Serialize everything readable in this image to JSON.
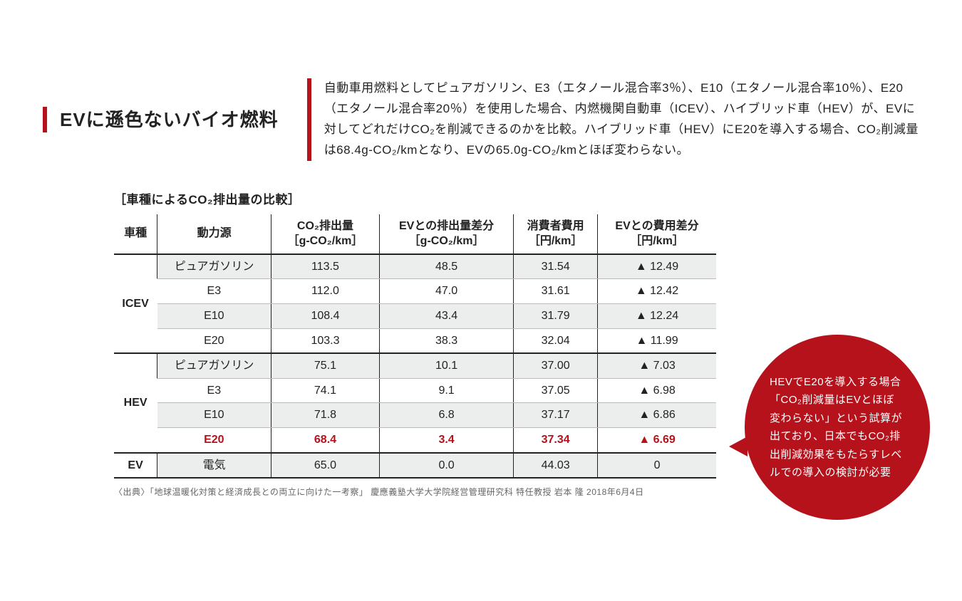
{
  "colors": {
    "accent": "#b5121b",
    "shade": "#eceded",
    "border": "#222222"
  },
  "header": {
    "title": "EVに遜色ないバイオ燃料",
    "description": "自動車用燃料としてピュアガソリン、E3（エタノール混合率3％）、E10（エタノール混合率10％）、E20（エタノール混合率20％）を使用した場合、内燃機関自動車（ICEV）、ハイブリッド車（HEV）が、EVに対してどれだけCO₂を削減できるのかを比較。ハイブリッド車（HEV）にE20を導入する場合、CO₂削減量は68.4g-CO₂/kmとなり、EVの65.0g-CO₂/kmとほぼ変わらない。"
  },
  "table": {
    "caption": "［車種によるCO₂排出量の比較］",
    "columns": {
      "c0": "車種",
      "c1": "動力源",
      "c2": "CO₂排出量\n［g-CO₂/km］",
      "c3": "EVとの排出量差分\n［g-CO₂/km］",
      "c4": "消費者費用\n［円/km］",
      "c5": "EVとの費用差分\n［円/km］"
    },
    "groups": [
      {
        "name": "ICEV",
        "rows": [
          {
            "shaded": true,
            "cells": [
              "ピュアガソリン",
              "113.5",
              "48.5",
              "31.54",
              "▲ 12.49"
            ]
          },
          {
            "shaded": false,
            "cells": [
              "E3",
              "112.0",
              "47.0",
              "31.61",
              "▲ 12.42"
            ]
          },
          {
            "shaded": true,
            "cells": [
              "E10",
              "108.4",
              "43.4",
              "31.79",
              "▲ 12.24"
            ]
          },
          {
            "shaded": false,
            "cells": [
              "E20",
              "103.3",
              "38.3",
              "32.04",
              "▲ 11.99"
            ]
          }
        ]
      },
      {
        "name": "HEV",
        "rows": [
          {
            "shaded": true,
            "cells": [
              "ピュアガソリン",
              "75.1",
              "10.1",
              "37.00",
              "▲   7.03"
            ]
          },
          {
            "shaded": false,
            "cells": [
              "E3",
              "74.1",
              "9.1",
              "37.05",
              "▲   6.98"
            ]
          },
          {
            "shaded": true,
            "cells": [
              "E10",
              "71.8",
              "6.8",
              "37.17",
              "▲   6.86"
            ]
          },
          {
            "shaded": false,
            "highlight": true,
            "cells": [
              "E20",
              "68.4",
              "3.4",
              "37.34",
              "▲   6.69"
            ]
          }
        ]
      },
      {
        "name": "EV",
        "rows": [
          {
            "shaded": true,
            "cells": [
              "電気",
              "65.0",
              "0.0",
              "44.03",
              "0"
            ]
          }
        ]
      }
    ]
  },
  "source": "〈出典〉「地球温暖化対策と経済成長との両立に向けた一考察」 慶應義塾大学大学院経営管理研究科 特任教授 岩本 隆 2018年6月4日",
  "callout": "HEVでE20を導入する場合「CO₂削減量はEVとほぼ変わらない」という試算が出ており、日本でもCO₂排出削減効果をもたらすレベルでの導入の検討が必要"
}
